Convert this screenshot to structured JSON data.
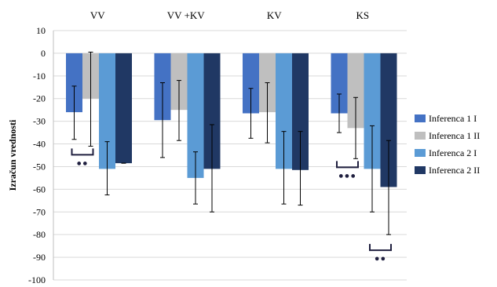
{
  "chart_data": {
    "type": "bar",
    "title": "",
    "xlabel": "",
    "ylabel": "Izračun vrednosti",
    "categories": [
      "VV",
      "VV +KV",
      "KV",
      "KS"
    ],
    "ylim": [
      -100,
      10
    ],
    "yticks": [
      10,
      0,
      -10,
      -20,
      -30,
      -40,
      -50,
      -60,
      -70,
      -80,
      -90,
      -100
    ],
    "grid": true,
    "legend_position": "right",
    "series": [
      {
        "name": "Inferenca 1 I",
        "color": "#4472C4",
        "values": [
          -26,
          -29.5,
          -26.5,
          -26.5
        ],
        "error_low": [
          -38,
          -46,
          -37.5,
          -35
        ],
        "error_high": [
          -14.5,
          -13,
          -15.5,
          -18
        ]
      },
      {
        "name": "Inferenca 1 II",
        "color": "#BFBFBF",
        "values": [
          -20,
          -25,
          -26,
          -33
        ],
        "error_low": [
          -41,
          -38.5,
          -39.5,
          -46.5
        ],
        "error_high": [
          0.5,
          -12,
          -13,
          -19.5
        ]
      },
      {
        "name": "Inferenca 2 I",
        "color": "#5B9BD5",
        "values": [
          -51,
          -55,
          -51,
          -51
        ],
        "error_low": [
          -62.5,
          -66.5,
          -66.5,
          -70
        ],
        "error_high": [
          -39,
          -43.5,
          -34.5,
          -32
        ]
      },
      {
        "name": "Inferenca 2 II",
        "color": "#203864",
        "values": [
          -48.5,
          -51,
          -51.5,
          -59
        ],
        "error_low": [
          -48.5,
          -70,
          -67,
          -80
        ],
        "error_high": [
          -48.5,
          -31.5,
          -34.5,
          -38.5
        ]
      }
    ],
    "annotations": [
      {
        "category": "VV",
        "series_from": 0,
        "series_to": 1,
        "marker": "●●"
      },
      {
        "category": "KS",
        "series_from": 0,
        "series_to": 1,
        "marker": "●●●"
      },
      {
        "category": "KS",
        "series_from": 2,
        "series_to": 3,
        "marker": "●●",
        "below": true
      }
    ]
  }
}
